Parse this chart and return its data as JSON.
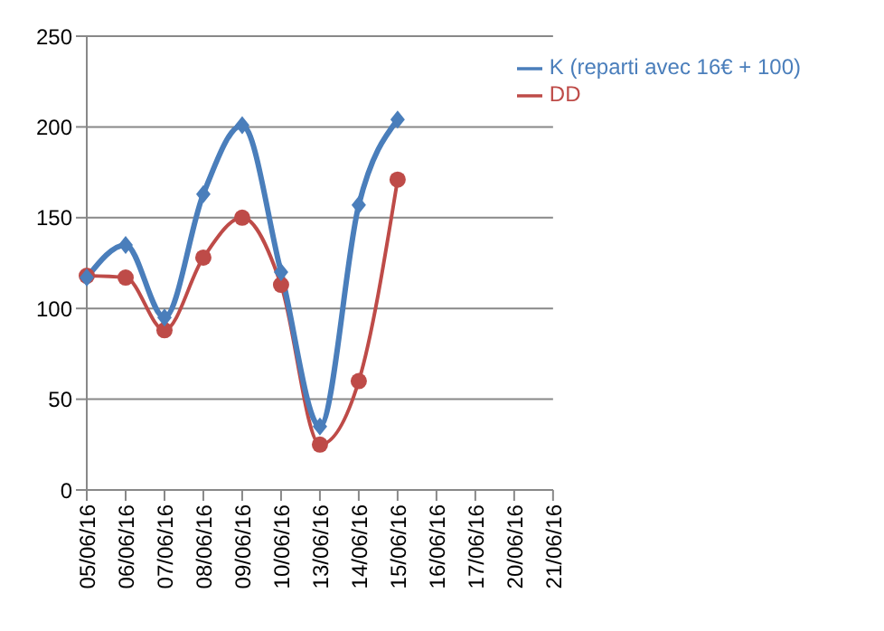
{
  "chart_data": {
    "type": "line",
    "categories": [
      "05/06/16",
      "06/06/16",
      "07/06/16",
      "08/06/16",
      "09/06/16",
      "10/06/16",
      "13/06/16",
      "14/06/16",
      "15/06/16",
      "16/06/16",
      "17/06/16",
      "20/06/16",
      "21/06/16"
    ],
    "series": [
      {
        "name": "K (reparti avec 16€ + 100)",
        "color": "#4a7ebb",
        "marker": "diamond",
        "values": [
          117,
          135,
          95,
          163,
          201,
          120,
          35,
          157,
          204,
          null,
          null,
          null,
          null
        ]
      },
      {
        "name": "DD",
        "color": "#be4b48",
        "marker": "circle",
        "values": [
          118,
          117,
          88,
          128,
          150,
          113,
          25,
          60,
          171,
          null,
          null,
          null,
          null
        ]
      }
    ],
    "ylim": [
      0,
      250
    ],
    "yticks": [
      0,
      50,
      100,
      150,
      200,
      250
    ],
    "grid": "y",
    "legend": "top right"
  }
}
